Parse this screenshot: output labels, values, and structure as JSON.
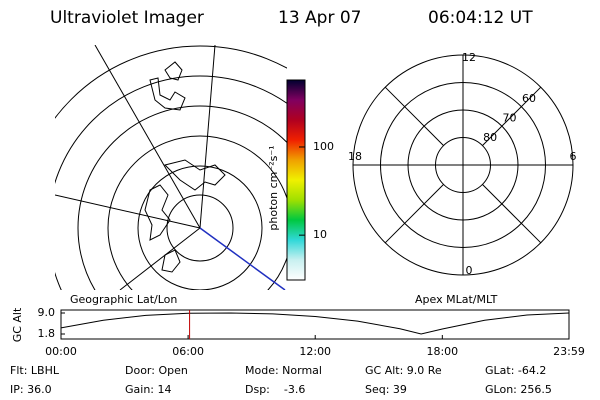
{
  "header": {
    "instrument": "Ultraviolet Imager",
    "date": "13 Apr 07",
    "time": "06:04:12 UT"
  },
  "colorbar": {
    "label": "photon cm⁻²s⁻¹",
    "log": true,
    "lim": [
      3.1,
      575
    ],
    "ticks": [
      10,
      100
    ],
    "colors": [
      "#ffffff",
      "#c8f0f0",
      "#30d8d8",
      "#00c840",
      "#a0e000",
      "#f0f000",
      "#f0a000",
      "#f02000",
      "#b00020",
      "#800060",
      "#000030"
    ]
  },
  "geo_panel": {
    "label": "Geographic Lat/Lon"
  },
  "polar": {
    "label": "Apex MLat/MLT",
    "rings": [
      80,
      70,
      60,
      50
    ],
    "ring_labels": [
      60,
      70,
      80
    ],
    "mlt_labels": [
      12,
      18,
      6,
      0
    ]
  },
  "chart_data": {
    "type": "line",
    "y_label": "GC Alt",
    "x": [
      0,
      2,
      4,
      6,
      8,
      10,
      12,
      14,
      16,
      17,
      18,
      20,
      22,
      23.98
    ],
    "values": [
      3.9,
      6.5,
      8.2,
      8.9,
      9.0,
      8.7,
      7.8,
      6.2,
      3.6,
      1.8,
      3.5,
      6.5,
      8.3,
      9.0
    ],
    "color": "#000000",
    "marker_x": 6.07,
    "marker_color": "#c00000",
    "xlim": [
      0,
      23.98
    ],
    "xticks": [
      {
        "value": 0,
        "label": "00:00"
      },
      {
        "value": 6,
        "label": "06:00"
      },
      {
        "value": 12,
        "label": "12:00"
      },
      {
        "value": 18,
        "label": "18:00"
      },
      {
        "value": 23.98,
        "label": "23:59"
      }
    ],
    "ylim": [
      1.8,
      9.0
    ],
    "yticks": [
      {
        "value": 9.0,
        "label": "9.0"
      },
      {
        "value": 1.8,
        "label": "1.8"
      }
    ]
  },
  "info": [
    [
      "Flt: LBHL",
      "IP: 36.0"
    ],
    [
      "Door: Open",
      "Gain: 14"
    ],
    [
      "Mode: Normal",
      "Dsp:    -3.6"
    ],
    [
      "GC Alt: 9.0 Re",
      "Seq: 39"
    ],
    [
      "GLat: -64.2",
      "GLon: 256.5"
    ]
  ]
}
